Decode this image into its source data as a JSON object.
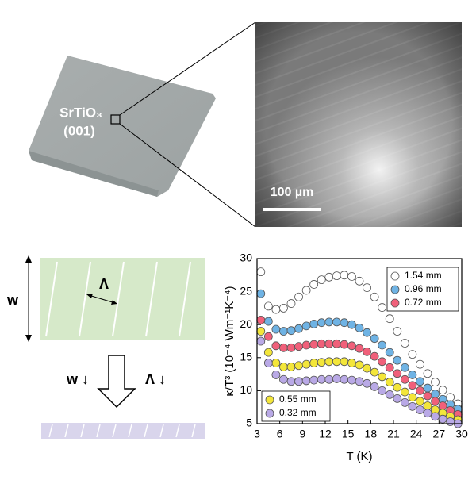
{
  "photo": {
    "sample_label": [
      "SrTiO₃",
      "(001)"
    ],
    "scale_bar": "100 µm"
  },
  "diagram": {
    "width_label": "w",
    "period_label": "Λ",
    "arrow_labels": [
      "w ↓",
      "Λ ↓"
    ]
  },
  "chart_data": {
    "type": "scatter",
    "xlabel": "T (K)",
    "ylabel": "κ/T³ (10⁻⁴ Wm⁻¹K⁻⁴)",
    "x": [
      3.5,
      4.5,
      5.5,
      6.5,
      7.5,
      8.5,
      9.5,
      10.5,
      11.5,
      12.5,
      13.5,
      14.5,
      15.5,
      16.5,
      17.5,
      18.5,
      19.5,
      20.5,
      21.5,
      22.5,
      23.5,
      24.5,
      25.5,
      26.5,
      27.5,
      28.5,
      29.5
    ],
    "xlim": [
      3,
      30
    ],
    "xticks": [
      3,
      6,
      9,
      12,
      15,
      18,
      21,
      24,
      27,
      30
    ],
    "ylim": [
      5,
      30
    ],
    "yticks": [
      5,
      10,
      15,
      20,
      25,
      30
    ],
    "series": [
      {
        "name": "1.54 mm",
        "color": "#ffffff",
        "legend": "upper right",
        "values": [
          28,
          22.8,
          22.3,
          22.5,
          23.2,
          24.2,
          25.2,
          26.1,
          26.8,
          27.2,
          27.4,
          27.5,
          27.3,
          26.6,
          25.6,
          24.2,
          22.6,
          20.9,
          19.0,
          17.2,
          15.5,
          14.0,
          12.6,
          11.3,
          10.1,
          9.0,
          8.0
        ]
      },
      {
        "name": "0.96 mm",
        "color": "#6fb3e4",
        "legend": "upper right",
        "values": [
          24.7,
          20.5,
          19.3,
          19.0,
          19.1,
          19.4,
          19.8,
          20.1,
          20.3,
          20.4,
          20.4,
          20.3,
          20.0,
          19.5,
          18.8,
          17.9,
          16.9,
          15.8,
          14.6,
          13.5,
          12.4,
          11.4,
          10.4,
          9.5,
          8.7,
          7.9,
          7.2
        ]
      },
      {
        "name": "0.72 mm",
        "color": "#f0607a",
        "legend": "upper right",
        "values": [
          20.7,
          18.2,
          16.8,
          16.5,
          16.5,
          16.7,
          16.9,
          17.0,
          17.1,
          17.1,
          17.1,
          17.0,
          16.8,
          16.4,
          15.9,
          15.2,
          14.4,
          13.5,
          12.6,
          11.7,
          10.8,
          10.0,
          9.2,
          8.4,
          7.7,
          7.0,
          6.4
        ]
      },
      {
        "name": "0.55 mm",
        "color": "#f3e63a",
        "legend": "lower left",
        "values": [
          19,
          15.8,
          14.2,
          13.6,
          13.6,
          13.8,
          14.0,
          14.2,
          14.3,
          14.4,
          14.4,
          14.4,
          14.2,
          13.9,
          13.4,
          12.8,
          12.1,
          11.3,
          10.5,
          9.8,
          9.0,
          8.4,
          7.7,
          7.1,
          6.6,
          6.1,
          5.6
        ]
      },
      {
        "name": "0.32 mm",
        "color": "#b9a9e6",
        "legend": "lower left",
        "values": [
          17.5,
          14.2,
          12.4,
          11.7,
          11.4,
          11.4,
          11.5,
          11.6,
          11.7,
          11.7,
          11.8,
          11.7,
          11.6,
          11.4,
          11.1,
          10.6,
          10.0,
          9.4,
          8.8,
          8.2,
          7.6,
          7.1,
          6.6,
          6.1,
          5.7,
          5.3,
          5.0
        ]
      }
    ]
  }
}
